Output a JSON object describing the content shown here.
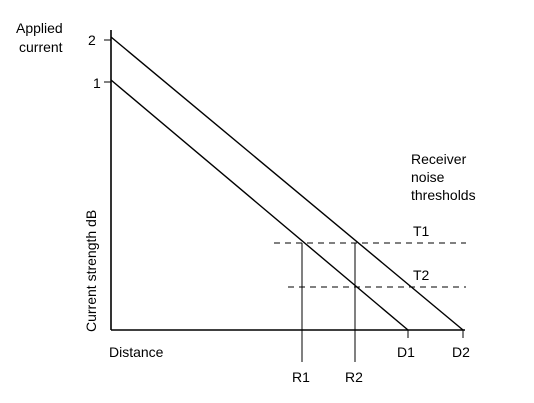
{
  "diagram": {
    "y_axis_title_line1": "Applied",
    "y_axis_title_line2": "current",
    "y_axis_label": "Current strength dB",
    "x_axis_label": "Distance",
    "y_ticks": {
      "tick_2": "2",
      "tick_1": "1"
    },
    "thresholds_title_line1": "Receiver",
    "thresholds_title_line2": "noise",
    "thresholds_title_line3": "thresholds",
    "threshold_labels": {
      "t1": "T1",
      "t2": "T2"
    },
    "x_markers": {
      "r1": "R1",
      "r2": "R2",
      "d1": "D1",
      "d2": "D2"
    }
  }
}
